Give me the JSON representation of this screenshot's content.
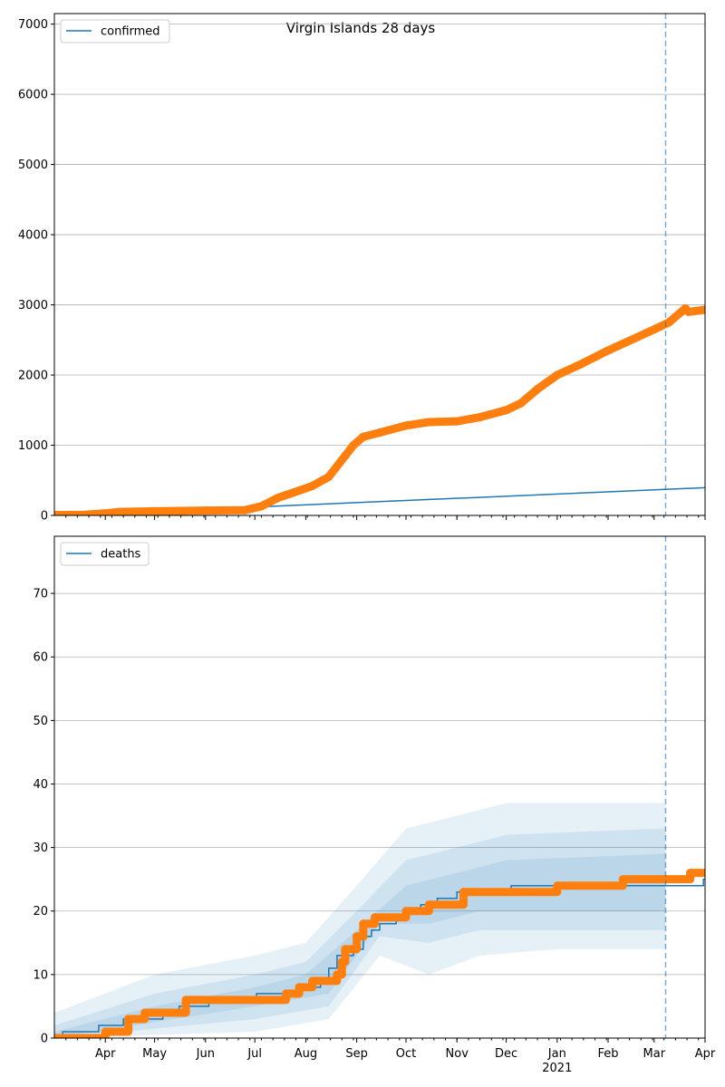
{
  "figure": {
    "title": "Virgin Islands 28 days"
  },
  "colors": {
    "model": "#1f77b4",
    "observed": "#ff7f0e",
    "grid": "#b0b0b0",
    "band": "#1f77b4"
  },
  "chart_data": [
    {
      "type": "line",
      "name": "top-panel",
      "legend": {
        "label": "confirmed",
        "placement": "top-left"
      },
      "xlim": [
        "2020-03-01",
        "2021-04-01"
      ],
      "ylim": [
        0,
        7150
      ],
      "yticks": [
        0,
        1000,
        2000,
        3000,
        4000,
        5000,
        6000,
        7000
      ],
      "grid": "y",
      "vline": "2021-03-08",
      "series": [
        {
          "name": "confirmed",
          "role": "model",
          "points": [
            [
              "2020-07-01",
              120
            ],
            [
              "2021-04-01",
              395
            ]
          ]
        },
        {
          "role": "observed",
          "points": [
            [
              "2020-03-01",
              5
            ],
            [
              "2020-03-20",
              10
            ],
            [
              "2020-04-01",
              30
            ],
            [
              "2020-04-10",
              50
            ],
            [
              "2020-05-01",
              60
            ],
            [
              "2020-06-01",
              70
            ],
            [
              "2020-06-25",
              75
            ],
            [
              "2020-07-05",
              130
            ],
            [
              "2020-07-15",
              250
            ],
            [
              "2020-07-25",
              330
            ],
            [
              "2020-08-05",
              420
            ],
            [
              "2020-08-15",
              550
            ],
            [
              "2020-08-20",
              700
            ],
            [
              "2020-08-25",
              850
            ],
            [
              "2020-08-30",
              1000
            ],
            [
              "2020-09-05",
              1120
            ],
            [
              "2020-09-15",
              1180
            ],
            [
              "2020-10-01",
              1280
            ],
            [
              "2020-10-15",
              1330
            ],
            [
              "2020-11-01",
              1340
            ],
            [
              "2020-11-15",
              1400
            ],
            [
              "2020-12-01",
              1500
            ],
            [
              "2020-12-10",
              1600
            ],
            [
              "2020-12-20",
              1800
            ],
            [
              "2021-01-01",
              2000
            ],
            [
              "2021-01-15",
              2150
            ],
            [
              "2021-02-01",
              2350
            ],
            [
              "2021-02-15",
              2500
            ],
            [
              "2021-03-01",
              2650
            ],
            [
              "2021-03-10",
              2750
            ],
            [
              "2021-03-20",
              2950
            ],
            [
              "2021-03-22",
              2900
            ],
            [
              "2021-04-01",
              2930
            ]
          ]
        }
      ]
    },
    {
      "type": "line",
      "name": "bottom-panel",
      "legend": {
        "label": "deaths",
        "placement": "top-left"
      },
      "xlim": [
        "2020-03-01",
        "2021-04-01"
      ],
      "ylim": [
        0,
        79
      ],
      "yticks": [
        0,
        10,
        20,
        30,
        40,
        50,
        60,
        70
      ],
      "grid": "y",
      "vline": "2021-03-08",
      "xticks": [
        {
          "label": "Apr",
          "date": "2020-04-01"
        },
        {
          "label": "May",
          "date": "2020-05-01"
        },
        {
          "label": "Jun",
          "date": "2020-06-01"
        },
        {
          "label": "Jul",
          "date": "2020-07-01"
        },
        {
          "label": "Aug",
          "date": "2020-08-01"
        },
        {
          "label": "Sep",
          "date": "2020-09-01"
        },
        {
          "label": "Oct",
          "date": "2020-10-01"
        },
        {
          "label": "Nov",
          "date": "2020-11-01"
        },
        {
          "label": "Dec",
          "date": "2020-12-01"
        },
        {
          "label": "Jan",
          "date": "2021-01-01",
          "sublabel": "2021"
        },
        {
          "label": "Feb",
          "date": "2021-02-01"
        },
        {
          "label": "Mar",
          "date": "2021-03-01"
        },
        {
          "label": "Apr",
          "date": "2021-04-01"
        }
      ],
      "bands": [
        {
          "lower": [
            [
              "2020-03-01",
              0
            ],
            [
              "2020-07-01",
              1
            ],
            [
              "2020-08-15",
              3
            ],
            [
              "2020-09-15",
              13
            ],
            [
              "2020-10-15",
              10
            ],
            [
              "2020-11-15",
              13
            ],
            [
              "2021-01-01",
              14
            ],
            [
              "2021-03-08",
              14
            ]
          ],
          "upper": [
            [
              "2020-03-01",
              4
            ],
            [
              "2020-05-01",
              10
            ],
            [
              "2020-07-01",
              13
            ],
            [
              "2020-08-01",
              15
            ],
            [
              "2020-09-01",
              24
            ],
            [
              "2020-10-01",
              33
            ],
            [
              "2020-11-01",
              35
            ],
            [
              "2020-12-01",
              37
            ],
            [
              "2021-03-08",
              37
            ]
          ]
        },
        {
          "lower": [
            [
              "2020-03-01",
              0
            ],
            [
              "2020-07-01",
              3
            ],
            [
              "2020-08-15",
              5
            ],
            [
              "2020-09-15",
              16
            ],
            [
              "2020-10-15",
              15
            ],
            [
              "2020-11-15",
              17
            ],
            [
              "2021-01-01",
              17
            ],
            [
              "2021-03-08",
              17
            ]
          ],
          "upper": [
            [
              "2020-03-01",
              2
            ],
            [
              "2020-05-01",
              7
            ],
            [
              "2020-07-01",
              10
            ],
            [
              "2020-08-01",
              12
            ],
            [
              "2020-09-01",
              20
            ],
            [
              "2020-10-01",
              28
            ],
            [
              "2020-11-01",
              30
            ],
            [
              "2020-12-01",
              32
            ],
            [
              "2021-03-08",
              33
            ]
          ]
        },
        {
          "lower": [
            [
              "2020-03-01",
              0
            ],
            [
              "2020-07-01",
              5
            ],
            [
              "2020-08-15",
              7
            ],
            [
              "2020-09-15",
              18
            ],
            [
              "2020-10-15",
              18
            ],
            [
              "2020-11-15",
              20
            ],
            [
              "2021-01-01",
              20
            ],
            [
              "2021-03-08",
              20
            ]
          ],
          "upper": [
            [
              "2020-03-01",
              1
            ],
            [
              "2020-05-01",
              5
            ],
            [
              "2020-07-01",
              8
            ],
            [
              "2020-08-01",
              10
            ],
            [
              "2020-09-01",
              17
            ],
            [
              "2020-10-01",
              24
            ],
            [
              "2020-11-01",
              26
            ],
            [
              "2020-12-01",
              28
            ],
            [
              "2021-03-08",
              29
            ]
          ]
        }
      ],
      "series": [
        {
          "name": "deaths",
          "role": "model",
          "step": true,
          "points": [
            [
              "2020-03-01",
              0
            ],
            [
              "2020-03-06",
              1
            ],
            [
              "2020-03-25",
              1
            ],
            [
              "2020-03-28",
              2
            ],
            [
              "2020-04-10",
              2
            ],
            [
              "2020-04-12",
              3
            ],
            [
              "2020-05-01",
              3
            ],
            [
              "2020-05-06",
              4
            ],
            [
              "2020-05-16",
              5
            ],
            [
              "2020-06-01",
              5
            ],
            [
              "2020-06-03",
              6
            ],
            [
              "2020-07-01",
              6
            ],
            [
              "2020-07-02",
              7
            ],
            [
              "2020-07-25",
              7
            ],
            [
              "2020-07-27",
              8
            ],
            [
              "2020-08-10",
              9
            ],
            [
              "2020-08-15",
              11
            ],
            [
              "2020-08-20",
              13
            ],
            [
              "2020-08-30",
              14
            ],
            [
              "2020-09-05",
              16
            ],
            [
              "2020-09-10",
              17
            ],
            [
              "2020-09-15",
              18
            ],
            [
              "2020-09-25",
              19
            ],
            [
              "2020-10-01",
              20
            ],
            [
              "2020-10-10",
              21
            ],
            [
              "2020-10-20",
              22
            ],
            [
              "2020-11-01",
              23
            ],
            [
              "2020-12-04",
              24
            ],
            [
              "2021-02-10",
              24
            ],
            [
              "2021-03-31",
              25
            ],
            [
              "2021-04-01",
              25
            ]
          ]
        },
        {
          "role": "observed",
          "step": true,
          "points": [
            [
              "2020-03-01",
              0
            ],
            [
              "2020-04-01",
              1
            ],
            [
              "2020-04-15",
              3
            ],
            [
              "2020-04-25",
              4
            ],
            [
              "2020-05-20",
              6
            ],
            [
              "2020-07-20",
              7
            ],
            [
              "2020-07-28",
              8
            ],
            [
              "2020-08-05",
              9
            ],
            [
              "2020-08-20",
              10
            ],
            [
              "2020-08-23",
              12
            ],
            [
              "2020-08-25",
              14
            ],
            [
              "2020-09-01",
              16
            ],
            [
              "2020-09-05",
              18
            ],
            [
              "2020-09-12",
              19
            ],
            [
              "2020-10-01",
              20
            ],
            [
              "2020-10-15",
              21
            ],
            [
              "2020-11-05",
              23
            ],
            [
              "2021-01-01",
              24
            ],
            [
              "2021-02-10",
              25
            ],
            [
              "2021-03-23",
              26
            ],
            [
              "2021-04-01",
              26
            ]
          ]
        }
      ]
    }
  ]
}
